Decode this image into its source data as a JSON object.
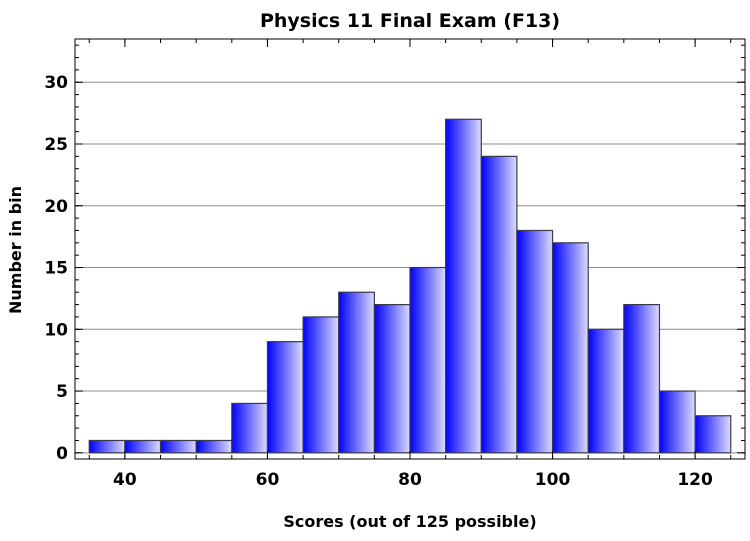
{
  "chart_data": {
    "type": "bar",
    "title": "Physics 11 Final Exam (F13)",
    "xlabel": "Scores (out of 125 possible)",
    "ylabel": "Number in bin",
    "xlim": [
      33,
      127
    ],
    "ylim": [
      -0.5,
      33.5
    ],
    "xticks": [
      40,
      60,
      80,
      100,
      120
    ],
    "yticks": [
      0,
      5,
      10,
      15,
      20,
      25,
      30
    ],
    "grid": true,
    "bin_width": 5,
    "bins": [
      {
        "start": 35,
        "end": 40,
        "count": 1
      },
      {
        "start": 40,
        "end": 45,
        "count": 1
      },
      {
        "start": 45,
        "end": 50,
        "count": 1
      },
      {
        "start": 50,
        "end": 55,
        "count": 1
      },
      {
        "start": 55,
        "end": 60,
        "count": 4
      },
      {
        "start": 60,
        "end": 65,
        "count": 9
      },
      {
        "start": 65,
        "end": 70,
        "count": 11
      },
      {
        "start": 70,
        "end": 75,
        "count": 13
      },
      {
        "start": 75,
        "end": 80,
        "count": 12
      },
      {
        "start": 80,
        "end": 85,
        "count": 15
      },
      {
        "start": 85,
        "end": 90,
        "count": 27
      },
      {
        "start": 90,
        "end": 95,
        "count": 24
      },
      {
        "start": 95,
        "end": 100,
        "count": 18
      },
      {
        "start": 100,
        "end": 105,
        "count": 17
      },
      {
        "start": 105,
        "end": 110,
        "count": 10
      },
      {
        "start": 110,
        "end": 115,
        "count": 12
      },
      {
        "start": 115,
        "end": 120,
        "count": 5
      },
      {
        "start": 120,
        "end": 125,
        "count": 3
      }
    ],
    "colors": {
      "bar_dark": "#0000ff",
      "bar_light": "#dcdcff",
      "bar_edge": "#3a3a4a",
      "grid": "#8c8c8c"
    }
  }
}
